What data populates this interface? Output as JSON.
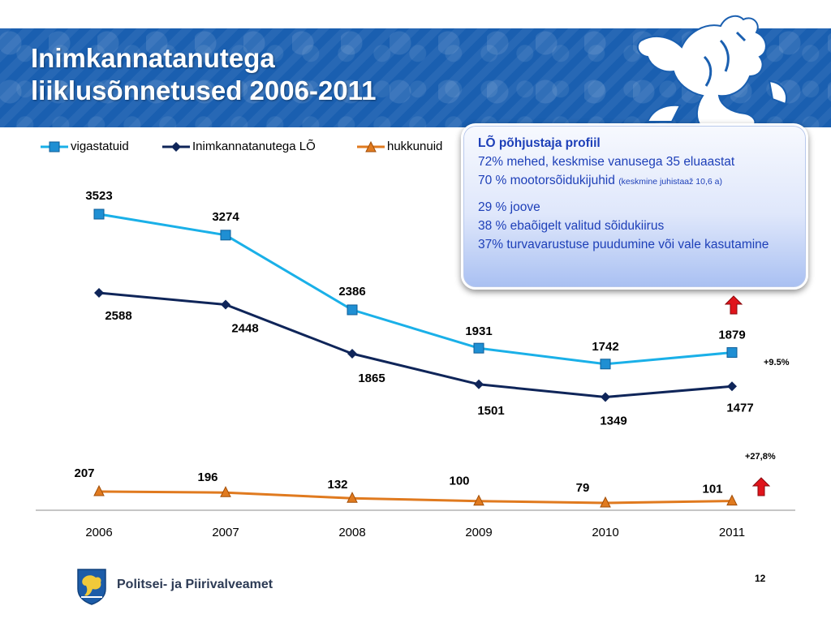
{
  "slide": {
    "title_line1": "Inimkannatanutega",
    "title_line2": "liiklusõnnetused 2006-2011",
    "page_number": "12",
    "footer_org": "Politsei- ja Piirivalveamet"
  },
  "callout": {
    "title": "LÕ põhjustaja profiil",
    "line1": "72% mehed, keskmise vanusega 35 eluaastat",
    "line2_main": "70 %  mootorsõidukijuhid ",
    "line2_small": "(keskmine juhistaaž 10,6 a)",
    "line3": "29 % joove",
    "line4": "38 % ebaõigelt valitud sõidukiirus",
    "line5": "37% turvavarustuse  puudumine või vale kasutamine"
  },
  "annotations": {
    "injured_change": "+9.5%",
    "killed_change": "+27,8%"
  },
  "chart_data": {
    "type": "line",
    "categories": [
      "2006",
      "2007",
      "2008",
      "2009",
      "2010",
      "2011"
    ],
    "series": [
      {
        "name": "vigastatuid",
        "values": [
          3523,
          3274,
          2386,
          1931,
          1742,
          1879
        ],
        "color": "#1ab0e8",
        "marker": "square"
      },
      {
        "name": "Inimkannatanutega LÕ",
        "values": [
          2588,
          2448,
          1865,
          1501,
          1349,
          1477
        ],
        "color": "#0f2559",
        "marker": "diamond"
      },
      {
        "name": "hukkunuid",
        "values": [
          207,
          196,
          132,
          100,
          79,
          101
        ],
        "color": "#e07a1f",
        "marker": "triangle"
      }
    ],
    "legend": "top-left",
    "grid": false
  }
}
